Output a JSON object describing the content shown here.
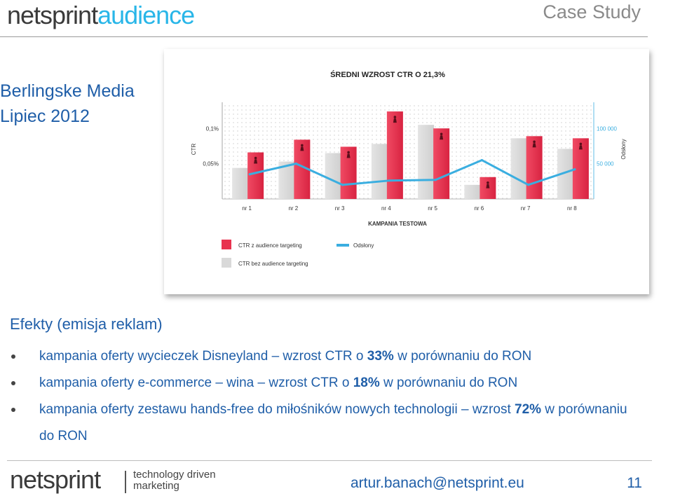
{
  "header": {
    "logo_part1": "netsprint",
    "logo_part2": "audience",
    "case_study": "Case Study"
  },
  "client": {
    "name": "Berlingske Media",
    "date": "Lipiec 2012"
  },
  "chart_data": {
    "type": "bar",
    "title": "ŚREDNI WZROST CTR O 21,3%",
    "xlabel": "KAMPANIA TESTOWA",
    "ylabel": "CTR",
    "y2label": "Odsłony",
    "categories": [
      "nr 1",
      "nr 2",
      "nr 3",
      "nr 4",
      "nr 5",
      "nr 6",
      "nr 7",
      "nr 8"
    ],
    "yticks": [
      "0,05%",
      "0,1%"
    ],
    "y2ticks": [
      "50 000",
      "100 000"
    ],
    "ylim": [
      0,
      0.135
    ],
    "y2lim": [
      0,
      135000
    ],
    "grid": true,
    "legend_position": "bottom-left",
    "series": [
      {
        "name": "CTR z audience targeting",
        "kind": "bar",
        "color": "#e8334f",
        "values": [
          0.066,
          0.084,
          0.074,
          0.124,
          0.1,
          0.031,
          0.089,
          0.086
        ]
      },
      {
        "name": "CTR bez audience targeting",
        "kind": "bar",
        "color": "#d9d9d9",
        "values": [
          0.044,
          0.053,
          0.065,
          0.078,
          0.105,
          0.02,
          0.086,
          0.071
        ]
      },
      {
        "name": "Odsłony",
        "kind": "line",
        "color": "#3aaee0",
        "values": [
          35000,
          50000,
          20000,
          26000,
          27000,
          55000,
          20000,
          42000
        ]
      }
    ]
  },
  "effects": {
    "title": "Efekty (emisja reklam)",
    "b1_a": "kampania oferty wycieczek Disneyland – wzrost CTR o ",
    "b1_bold": "33%",
    "b1_b": " w porównaniu do RON",
    "b2_a": "kampania oferty e-commerce – wina – wzrost CTR o ",
    "b2_bold": "18%",
    "b2_b": " w porównaniu do RON",
    "b3_a": "kampania oferty zestawu hands-free do miłośników nowych technologii – wzrost ",
    "b3_bold": "72%",
    "b3_b": " w porównaniu do RON"
  },
  "footer": {
    "logo": "netsprint",
    "tagline_line1": "technology driven",
    "tagline_line2": "marketing",
    "email": "artur.banach@netsprint.eu",
    "page": "11"
  }
}
